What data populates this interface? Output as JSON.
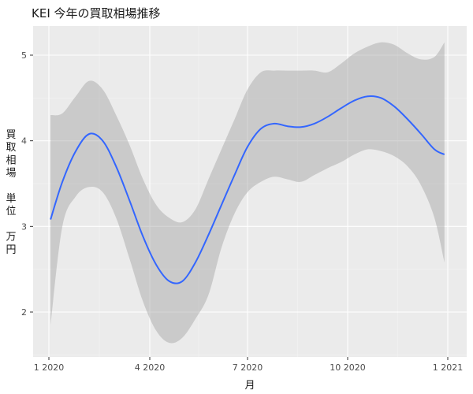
{
  "chart_data": {
    "type": "line",
    "title": "KEI 今年の買取相場推移",
    "xlabel": "月",
    "ylabel": "買取相場　単位　万円",
    "ylabel_lines": [
      "買",
      "取",
      "相",
      "場",
      "",
      "単",
      "位",
      "",
      "万",
      "円"
    ],
    "x_ticks": [
      "1 2020",
      "4 2020",
      "7 2020",
      "10 2020",
      "1 2021"
    ],
    "y_ticks": [
      "2",
      "3",
      "4",
      "5"
    ],
    "ylim": [
      1.5,
      5.35
    ],
    "grid": true,
    "panel_background": "#EBEBEB",
    "line_color": "#3366FF",
    "ribbon_color": "#999999",
    "series": [
      {
        "x": [
          0.05,
          0.4,
          0.8,
          1.2,
          1.6,
          2.0,
          2.4,
          2.8,
          3.2,
          3.6,
          4.0,
          4.4,
          4.8,
          5.2,
          5.6,
          6.0,
          6.4,
          6.8,
          7.2,
          7.6,
          8.0,
          8.4,
          8.8,
          9.2,
          9.6,
          10.0,
          10.4,
          10.8,
          11.2,
          11.6,
          11.9
        ],
        "y": [
          3.08,
          3.52,
          3.88,
          4.08,
          4.0,
          3.7,
          3.3,
          2.88,
          2.55,
          2.36,
          2.36,
          2.58,
          2.9,
          3.25,
          3.6,
          3.93,
          4.14,
          4.2,
          4.17,
          4.16,
          4.2,
          4.28,
          4.38,
          4.47,
          4.52,
          4.5,
          4.4,
          4.25,
          4.08,
          3.9,
          3.84
        ],
        "lower": [
          1.85,
          3.0,
          3.35,
          3.46,
          3.4,
          3.1,
          2.62,
          2.12,
          1.78,
          1.64,
          1.7,
          1.92,
          2.2,
          2.75,
          3.15,
          3.4,
          3.52,
          3.58,
          3.55,
          3.52,
          3.6,
          3.68,
          3.75,
          3.84,
          3.9,
          3.88,
          3.82,
          3.7,
          3.48,
          3.1,
          2.58
        ],
        "upper": [
          4.3,
          4.32,
          4.52,
          4.7,
          4.6,
          4.3,
          3.95,
          3.55,
          3.25,
          3.1,
          3.05,
          3.2,
          3.55,
          3.9,
          4.25,
          4.6,
          4.8,
          4.82,
          4.82,
          4.82,
          4.82,
          4.8,
          4.9,
          5.02,
          5.1,
          5.15,
          5.12,
          5.02,
          4.95,
          4.98,
          5.15
        ]
      }
    ]
  }
}
